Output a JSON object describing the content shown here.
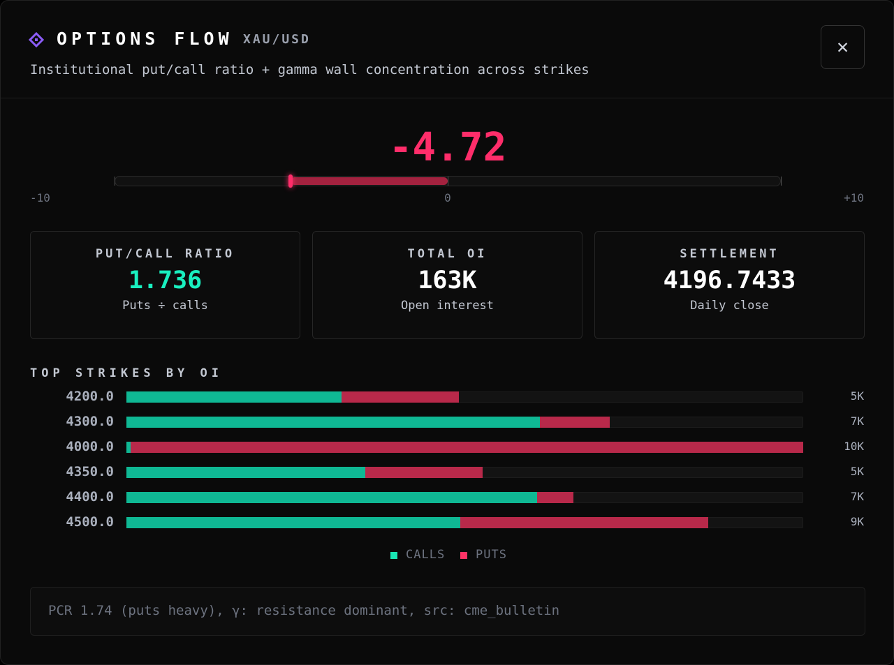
{
  "header": {
    "title": "OPTIONS FLOW",
    "symbol": "XAU/USD",
    "subtitle": "Institutional put/call ratio + gamma wall concentration across strikes"
  },
  "gauge": {
    "value": -4.72,
    "range": [
      -10,
      10
    ],
    "ticks": [
      -10,
      0,
      {
        "value": 10,
        "label": "+10"
      }
    ],
    "color": "#ff2d6a"
  },
  "stats": [
    {
      "label": "PUT/CALL RATIO",
      "value": "1.736",
      "caption": "Puts ÷ calls",
      "color": "#19f0c0"
    },
    {
      "label": "TOTAL OI",
      "value": "163K",
      "caption": "Open interest",
      "color": "#ffffff"
    },
    {
      "label": "SETTLEMENT",
      "value": "4196.7433",
      "caption": "Daily close",
      "color": "#ffffff"
    }
  ],
  "strikes": {
    "title": "TOP STRIKES BY OI",
    "rows": [
      {
        "strike": "4200.0",
        "calls": 3180,
        "puts": 1730,
        "total_label": "5K"
      },
      {
        "strike": "4300.0",
        "calls": 6110,
        "puts": 1030,
        "total_label": "7K"
      },
      {
        "strike": "4000.0",
        "calls": 60,
        "puts": 9940,
        "total_label": "10K"
      },
      {
        "strike": "4350.0",
        "calls": 3530,
        "puts": 1730,
        "total_label": "5K"
      },
      {
        "strike": "4400.0",
        "calls": 6070,
        "puts": 540,
        "total_label": "7K"
      },
      {
        "strike": "4500.0",
        "calls": 4930,
        "puts": 3670,
        "total_label": "9K"
      }
    ],
    "legend": [
      {
        "name": "CALLS",
        "color": "#0fb894",
        "swatch": "#19e6b4"
      },
      {
        "name": "PUTS",
        "color": "#b8294a",
        "swatch": "#ff3366"
      }
    ]
  },
  "note": "PCR 1.74 (puts heavy), γ: resistance dominant, src: cme_bulletin"
}
